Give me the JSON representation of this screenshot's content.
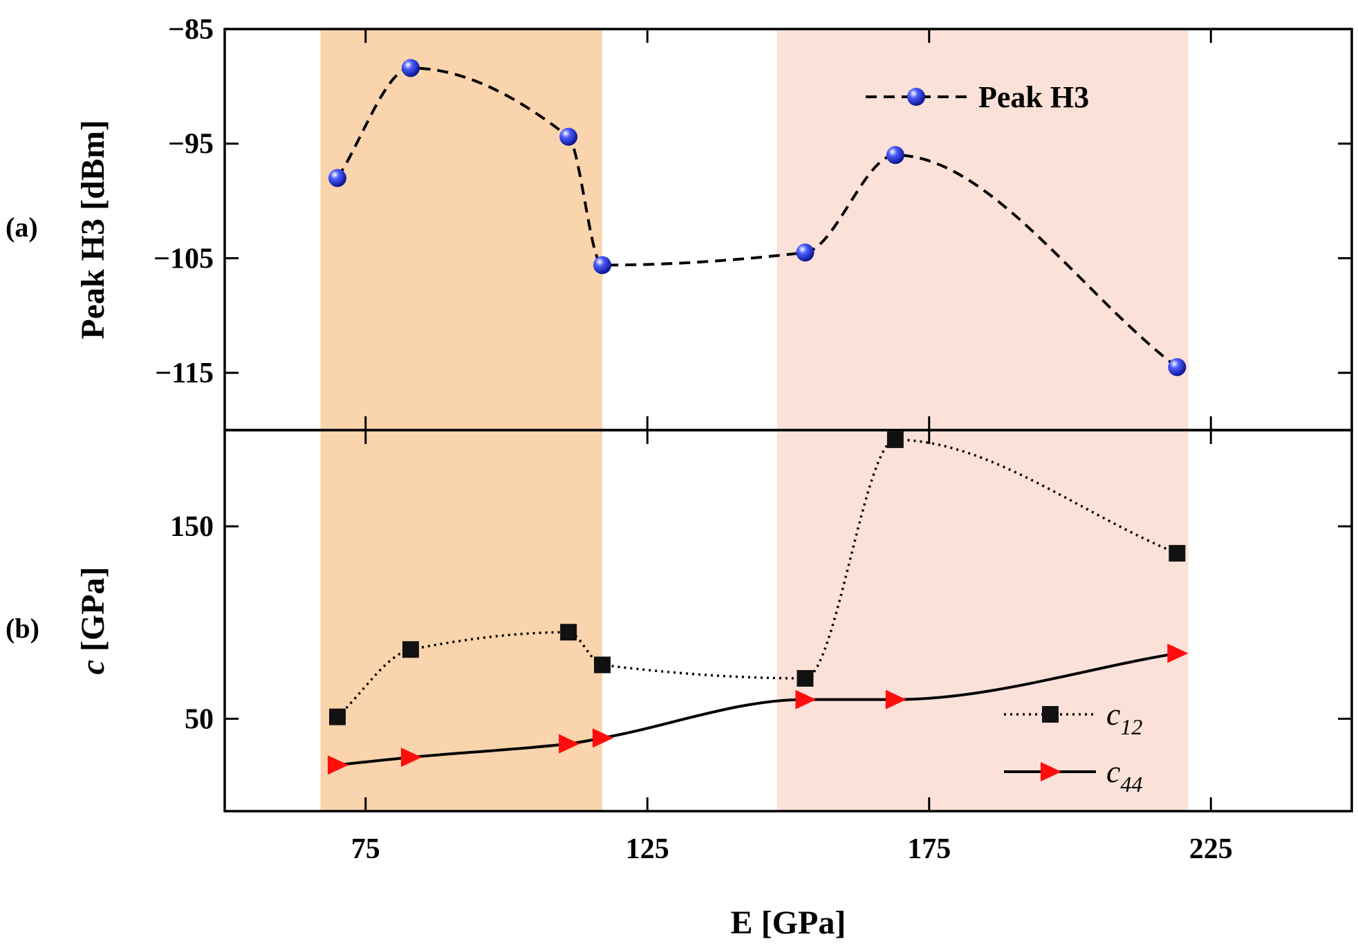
{
  "chart_data": [
    {
      "panel": "(a)",
      "type": "line",
      "ylabel": "Peak H3 [dBm]",
      "ylim": [
        -120,
        -85
      ],
      "yticks": [
        "−85",
        "−95",
        "−105",
        "−115"
      ],
      "ytick_values": [
        -85,
        -95,
        -105,
        -115
      ],
      "series": [
        {
          "name": "Peak H3",
          "style": "dashed",
          "marker": "circle",
          "color": "#1a2be0",
          "x": [
            70,
            83,
            111,
            117,
            153,
            169,
            219
          ],
          "values": [
            -98,
            -88.4,
            -94.4,
            -105.6,
            -104.5,
            -96,
            -114.5
          ]
        }
      ],
      "shaded_regions": [
        {
          "x": [
            67,
            117
          ],
          "color": "#f9d4ac"
        },
        {
          "x": [
            148,
            221
          ],
          "color": "#fbe1d8"
        }
      ]
    },
    {
      "panel": "(b)",
      "type": "line",
      "xlabel": "E [GPa]",
      "ylabel": "c [GPa]",
      "ylabel_italic": "c",
      "ylabel_rest": " [GPa]",
      "ylim": [
        2,
        200
      ],
      "yticks": [
        "150",
        "50"
      ],
      "ytick_values": [
        150,
        50
      ],
      "xlim": [
        50,
        250
      ],
      "xticks": [
        "75",
        "125",
        "175",
        "225"
      ],
      "xtick_values": [
        75,
        125,
        175,
        225
      ],
      "series": [
        {
          "name": "c",
          "sub": "12",
          "style": "dotted",
          "marker": "square",
          "color": "#111111",
          "x": [
            70,
            83,
            111,
            117,
            153,
            169,
            219
          ],
          "values": [
            51,
            86,
            95,
            78,
            71,
            195,
            136
          ]
        },
        {
          "name": "c",
          "sub": "44",
          "style": "solid",
          "marker": "triangle-right",
          "color": "#ff0d0d",
          "x": [
            70,
            83,
            111,
            117,
            153,
            169,
            219
          ],
          "values": [
            26,
            30,
            37,
            40,
            60,
            60,
            84
          ]
        }
      ]
    }
  ],
  "panel_labels": [
    "(a)",
    "(b)"
  ]
}
